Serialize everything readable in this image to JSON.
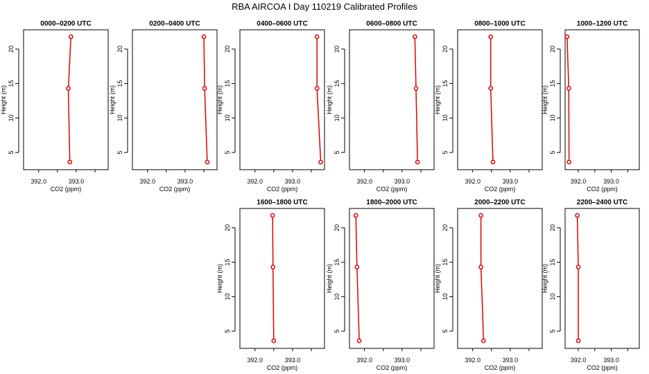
{
  "figure": {
    "title": "RBA AIRCOA I  Day 110219  Calibrated Profiles"
  },
  "colors": {
    "line": "#e00000",
    "marker": "#e00000",
    "axis": "#000000"
  },
  "chart_data": [
    {
      "type": "line",
      "title": "0000–0200 UTC",
      "xlabel": "CO2 (ppm)",
      "ylabel": "Height (m)",
      "xlim": [
        391.6,
        393.85
      ],
      "ylim": [
        2.5,
        22.8
      ],
      "xticks": [
        392.0,
        393.0
      ],
      "xtick_labels": [
        "392.0",
        "393.0"
      ],
      "yticks": [
        5,
        10,
        15,
        20
      ],
      "ytick_labels": [
        "5",
        "10",
        "15",
        "20"
      ],
      "points": [
        {
          "x": 392.86,
          "y": 21.8
        },
        {
          "x": 392.79,
          "y": 14.3
        },
        {
          "x": 392.83,
          "y": 3.6
        }
      ]
    },
    {
      "type": "line",
      "title": "0200–0400 UTC",
      "xlabel": "CO2 (ppm)",
      "ylabel": "Height (m)",
      "xlim": [
        391.6,
        393.85
      ],
      "ylim": [
        2.5,
        22.8
      ],
      "xticks": [
        392.0,
        393.0
      ],
      "xtick_labels": [
        "392.0",
        "393.0"
      ],
      "yticks": [
        5,
        10,
        15,
        20
      ],
      "ytick_labels": [
        "5",
        "10",
        "15",
        "20"
      ],
      "points": [
        {
          "x": 393.5,
          "y": 21.8
        },
        {
          "x": 393.52,
          "y": 14.3
        },
        {
          "x": 393.59,
          "y": 3.6
        }
      ]
    },
    {
      "type": "line",
      "title": "0400–0600 UTC",
      "xlabel": "CO2 (ppm)",
      "ylabel": "Height (m)",
      "xlim": [
        391.6,
        393.85
      ],
      "ylim": [
        2.5,
        22.8
      ],
      "xticks": [
        392.0,
        393.0
      ],
      "xtick_labels": [
        "392.0",
        "393.0"
      ],
      "yticks": [
        5,
        10,
        15,
        20
      ],
      "ytick_labels": [
        "5",
        "10",
        "15",
        "20"
      ],
      "points": [
        {
          "x": 393.65,
          "y": 21.8
        },
        {
          "x": 393.65,
          "y": 14.3
        },
        {
          "x": 393.75,
          "y": 3.6
        }
      ]
    },
    {
      "type": "line",
      "title": "0600–0800 UTC",
      "xlabel": "CO2 (ppm)",
      "ylabel": "Height (m)",
      "xlim": [
        391.6,
        393.85
      ],
      "ylim": [
        2.5,
        22.8
      ],
      "xticks": [
        392.0,
        393.0
      ],
      "xtick_labels": [
        "392.0",
        "393.0"
      ],
      "yticks": [
        5,
        10,
        15,
        20
      ],
      "ytick_labels": [
        "5",
        "10",
        "15",
        "20"
      ],
      "points": [
        {
          "x": 393.34,
          "y": 21.8
        },
        {
          "x": 393.37,
          "y": 14.3
        },
        {
          "x": 393.41,
          "y": 3.6
        }
      ]
    },
    {
      "type": "line",
      "title": "0800–1000 UTC",
      "xlabel": "CO2 (ppm)",
      "ylabel": "Height (m)",
      "xlim": [
        391.6,
        393.85
      ],
      "ylim": [
        2.5,
        22.8
      ],
      "xticks": [
        392.0,
        393.0
      ],
      "xtick_labels": [
        "392.0",
        "393.0"
      ],
      "yticks": [
        5,
        10,
        15,
        20
      ],
      "ytick_labels": [
        "5",
        "10",
        "15",
        "20"
      ],
      "points": [
        {
          "x": 392.48,
          "y": 21.8
        },
        {
          "x": 392.48,
          "y": 14.3
        },
        {
          "x": 392.54,
          "y": 3.6
        }
      ]
    },
    {
      "type": "line",
      "title": "1000–1200 UTC",
      "xlabel": "CO2 (ppm)",
      "ylabel": "Height (m)",
      "xlim": [
        391.6,
        393.85
      ],
      "ylim": [
        2.5,
        22.8
      ],
      "xticks": [
        392.0,
        393.0
      ],
      "xtick_labels": [
        "392.0",
        "393.0"
      ],
      "yticks": [
        5,
        10,
        15,
        20
      ],
      "ytick_labels": [
        "5",
        "10",
        "15",
        "20"
      ],
      "points": [
        {
          "x": 391.66,
          "y": 21.8
        },
        {
          "x": 391.71,
          "y": 14.3
        },
        {
          "x": 391.72,
          "y": 3.6
        }
      ]
    },
    {
      "type": "line",
      "title": "1600–1800 UTC",
      "xlabel": "CO2 (ppm)",
      "ylabel": "Height (m)",
      "xlim": [
        391.6,
        393.85
      ],
      "ylim": [
        2.5,
        22.8
      ],
      "xticks": [
        392.0,
        393.0
      ],
      "xtick_labels": [
        "392.0",
        "393.0"
      ],
      "yticks": [
        5,
        10,
        15,
        20
      ],
      "ytick_labels": [
        "5",
        "10",
        "15",
        "20"
      ],
      "points": [
        {
          "x": 392.47,
          "y": 21.8
        },
        {
          "x": 392.48,
          "y": 14.3
        },
        {
          "x": 392.5,
          "y": 3.6
        }
      ]
    },
    {
      "type": "line",
      "title": "1800–2000 UTC",
      "xlabel": "CO2 (ppm)",
      "ylabel": "Height (m)",
      "xlim": [
        391.6,
        393.85
      ],
      "ylim": [
        2.5,
        22.8
      ],
      "xticks": [
        392.0,
        393.0
      ],
      "xtick_labels": [
        "392.0",
        "393.0"
      ],
      "yticks": [
        5,
        10,
        15,
        20
      ],
      "ytick_labels": [
        "5",
        "10",
        "15",
        "20"
      ],
      "points": [
        {
          "x": 391.77,
          "y": 21.8
        },
        {
          "x": 391.8,
          "y": 14.3
        },
        {
          "x": 391.86,
          "y": 3.6
        }
      ]
    },
    {
      "type": "line",
      "title": "2000–2200 UTC",
      "xlabel": "CO2 (ppm)",
      "ylabel": "Height (m)",
      "xlim": [
        391.6,
        393.85
      ],
      "ylim": [
        2.5,
        22.8
      ],
      "xticks": [
        392.0,
        393.0
      ],
      "xtick_labels": [
        "392.0",
        "393.0"
      ],
      "yticks": [
        5,
        10,
        15,
        20
      ],
      "ytick_labels": [
        "5",
        "10",
        "15",
        "20"
      ],
      "points": [
        {
          "x": 392.22,
          "y": 21.8
        },
        {
          "x": 392.22,
          "y": 14.3
        },
        {
          "x": 392.29,
          "y": 3.6
        }
      ]
    },
    {
      "type": "line",
      "title": "2200–2400 UTC",
      "xlabel": "CO2 (ppm)",
      "ylabel": "Height (m)",
      "xlim": [
        391.6,
        393.85
      ],
      "ylim": [
        2.5,
        22.8
      ],
      "xticks": [
        392.0,
        393.0
      ],
      "xtick_labels": [
        "392.0",
        "393.0"
      ],
      "yticks": [
        5,
        10,
        15,
        20
      ],
      "ytick_labels": [
        "5",
        "10",
        "15",
        "20"
      ],
      "points": [
        {
          "x": 391.97,
          "y": 21.8
        },
        {
          "x": 392.0,
          "y": 14.3
        },
        {
          "x": 392.0,
          "y": 3.6
        }
      ]
    }
  ]
}
